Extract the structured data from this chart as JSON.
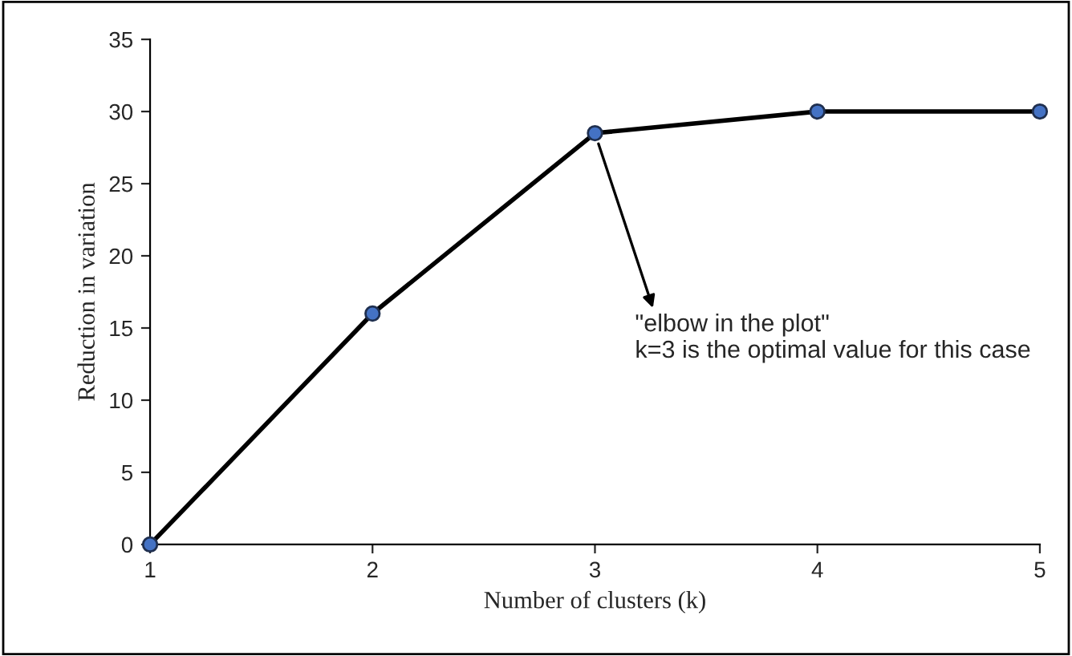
{
  "chart_data": {
    "type": "line",
    "xlabel": "Number of clusters (k)",
    "ylabel": "Reduction in variation",
    "x": [
      1,
      2,
      3,
      4,
      5
    ],
    "series": [
      {
        "color": "#000000",
        "colors": [
          "#4472c4",
          "#4472c4",
          "#4472c4",
          "#4472c4",
          "#4472c4"
        ],
        "values": [
          0,
          16,
          28.5,
          30,
          30
        ]
      }
    ],
    "xlim": [
      1,
      5
    ],
    "xticks": [
      1,
      2,
      3,
      4,
      5
    ],
    "ylim": [
      0,
      35
    ],
    "yticks": [
      0,
      5,
      10,
      15,
      20,
      25,
      30,
      35
    ],
    "marker": "circle",
    "line_style": "solid",
    "grid": false,
    "annotations": [
      {
        "text": "\"elbow in the plot\"\nk=3 is the optimal value for this case",
        "x": 3,
        "y": 28.5
      }
    ]
  }
}
